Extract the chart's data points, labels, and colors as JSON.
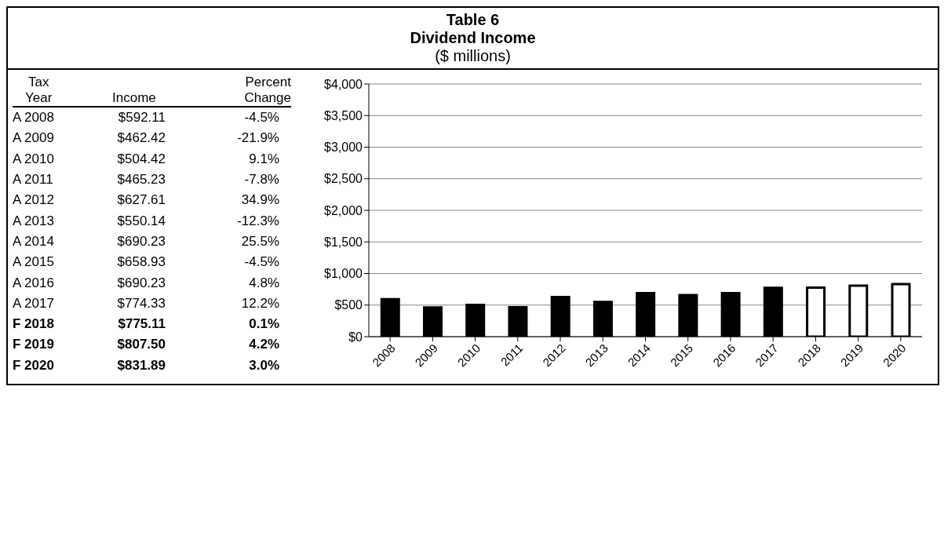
{
  "chart_data": [
    {
      "type": "other",
      "annotations": [
        "Tax Year",
        "Income",
        "Percent Change",
        "A 2008",
        "$592.11",
        "-4.5%",
        "A 2009",
        "$462.42",
        "-21.9%",
        "A 2010",
        "$504.42",
        "9.1%",
        "A 2011",
        "$465.23",
        "-7.8%",
        "A 2012",
        "$627.61",
        "34.9%",
        "A 2013",
        "$550.14",
        "-12.3%",
        "A 2014",
        "$690.23",
        "25.5%",
        "A 2015",
        "$658.93",
        "-4.5%",
        "A 2016",
        "$690.23",
        "4.8%",
        "A 2017",
        "$774.33",
        "12.2%",
        "F 2018",
        "$775.11",
        "0.1%",
        "F 2019",
        "$807.50",
        "4.2%",
        "F 2020",
        "$831.89",
        "3.0%"
      ]
    },
    {
      "type": "bar",
      "title": "Table 6",
      "subtitle": "Dividend Income",
      "categories": [
        "2008",
        "2009",
        "2010",
        "2011",
        "2012",
        "2013",
        "2014",
        "2015",
        "2016",
        "2017",
        "2018",
        "2019",
        "2020"
      ],
      "values": [
        592.11,
        462.42,
        504.42,
        465.23,
        627.61,
        550.14,
        690.23,
        658.93,
        690.23,
        774.33,
        775.11,
        807.5,
        831.89
      ],
      "colors": [
        "#000000",
        "#000000",
        "#000000",
        "#000000",
        "#000000",
        "#000000",
        "#000000",
        "#000000",
        "#000000",
        "#000000",
        "#ffffff",
        "#ffffff",
        "#ffffff"
      ],
      "ylim": [
        0,
        4000
      ],
      "yticks": [
        {
          "value": 0,
          "label": "$0"
        },
        {
          "value": 500,
          "label": "$500"
        },
        {
          "value": 1000,
          "label": "$1,000"
        },
        {
          "value": 1500,
          "label": "$1,500"
        },
        {
          "value": 2000,
          "label": "$2,000"
        },
        {
          "value": 2500,
          "label": "$2,500"
        },
        {
          "value": 3000,
          "label": "$3,000"
        },
        {
          "value": 3500,
          "label": "$3,500"
        },
        {
          "value": 4000,
          "label": "$4,000"
        }
      ],
      "grid": "y",
      "annotations": [
        "($ millions)"
      ]
    }
  ]
}
